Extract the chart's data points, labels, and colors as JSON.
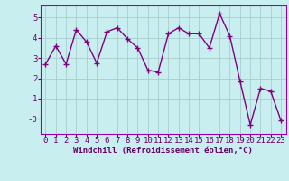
{
  "x": [
    0,
    1,
    2,
    3,
    4,
    5,
    6,
    7,
    8,
    9,
    10,
    11,
    12,
    13,
    14,
    15,
    16,
    17,
    18,
    19,
    20,
    21,
    22,
    23
  ],
  "y": [
    2.7,
    3.6,
    2.7,
    4.4,
    3.8,
    2.75,
    4.3,
    4.5,
    3.95,
    3.5,
    2.4,
    2.3,
    4.2,
    4.5,
    4.2,
    4.2,
    3.5,
    5.2,
    4.1,
    1.85,
    -0.3,
    1.5,
    1.35,
    -0.1
  ],
  "line_color": "#800080",
  "marker": "+",
  "marker_size": 4,
  "marker_linewidth": 1.0,
  "bg_color": "#c8eef0",
  "grid_color": "#aacccc",
  "xlabel": "Windchill (Refroidissement éolien,°C)",
  "xlabel_fontsize": 6.5,
  "xlim": [
    -0.5,
    23.5
  ],
  "ylim": [
    -0.75,
    5.6
  ],
  "xtick_labels": [
    "0",
    "1",
    "2",
    "3",
    "4",
    "5",
    "6",
    "7",
    "8",
    "9",
    "10",
    "11",
    "12",
    "13",
    "14",
    "15",
    "16",
    "17",
    "18",
    "19",
    "20",
    "21",
    "22",
    "23"
  ],
  "ytick_labels": [
    "-0",
    "1",
    "2",
    "3",
    "4",
    "5"
  ],
  "ytick_values": [
    0.0,
    1.0,
    2.0,
    3.0,
    4.0,
    5.0
  ],
  "tick_fontsize": 6.5,
  "line_width": 1.0,
  "text_color": "#660066",
  "spine_color": "#9900aa"
}
